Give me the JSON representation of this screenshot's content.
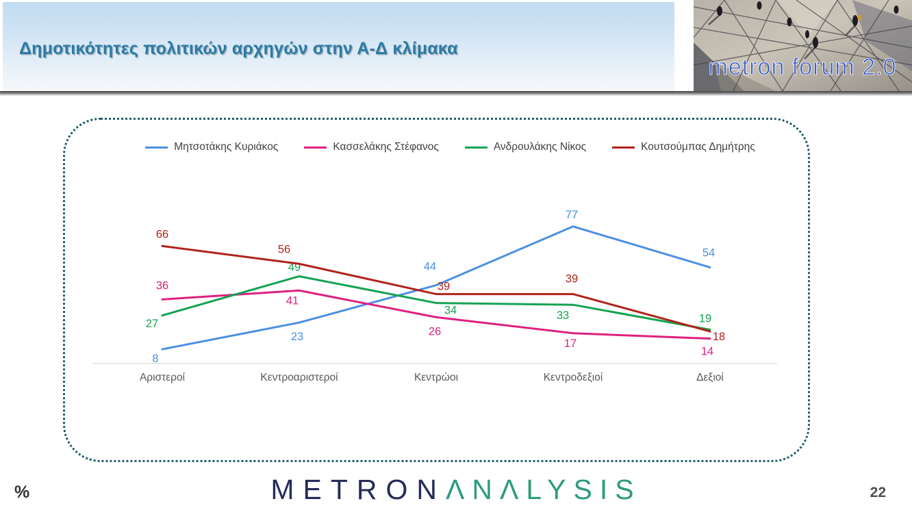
{
  "header": {
    "title": "Δημοτικότητες πολιτικών αρχηγών στην Α-Δ κλίμακα",
    "logo_text": "metron forum 2.0"
  },
  "footer": {
    "percent_label": "%",
    "brand_metron": "METRON",
    "brand_analysis": "ΛNΛLYSIS",
    "page_number": "22"
  },
  "chart_data": {
    "type": "line",
    "title": "Δημοτικότητες πολιτικών αρχηγών στην Α-Δ κλίμακα",
    "unit": "%",
    "categories": [
      "Αριστεροί",
      "Κεντροαριστεροί",
      "Κεντρώοι",
      "Κεντροδεξιοί",
      "Δεξιοί"
    ],
    "series": [
      {
        "name": "Μητσοτάκης Κυριάκος",
        "color": "#4a90e2",
        "values": [
          8,
          23,
          44,
          77,
          54
        ],
        "label_offsets": [
          [
            -10,
            19
          ],
          [
            -3,
            26
          ],
          [
            -9,
            -22
          ],
          [
            -2,
            -12
          ],
          [
            -2,
            -16
          ]
        ]
      },
      {
        "name": "Κασσελάκης Στέφανος",
        "color": "#df2180",
        "values": [
          36,
          41,
          26,
          17,
          14
        ],
        "label_offsets": [
          [
            0,
            -15
          ],
          [
            -10,
            20
          ],
          [
            -2,
            26
          ],
          [
            -4,
            20
          ],
          [
            -4,
            24
          ]
        ]
      },
      {
        "name": "Ανδρουλάκης Νίκος",
        "color": "#14a351",
        "values": [
          27,
          49,
          34,
          33,
          19
        ],
        "label_offsets": [
          [
            -15,
            17
          ],
          [
            -7,
            -8
          ],
          [
            21,
            16
          ],
          [
            -15,
            21
          ],
          [
            -7,
            -11
          ]
        ]
      },
      {
        "name": "Κουτσούμπας Δημήτρης",
        "color": "#b0231a",
        "values": [
          66,
          56,
          39,
          39,
          18
        ],
        "label_offsets": [
          [
            0,
            -12
          ],
          [
            -22,
            -16
          ],
          [
            11,
            -6
          ],
          [
            -2,
            -17
          ],
          [
            13,
            13
          ]
        ]
      }
    ],
    "ylim": [
      0,
      100
    ],
    "grid": false,
    "legend_position": "top",
    "axis_line_color": "#d9d9d9",
    "category_label_color": "#595959"
  }
}
